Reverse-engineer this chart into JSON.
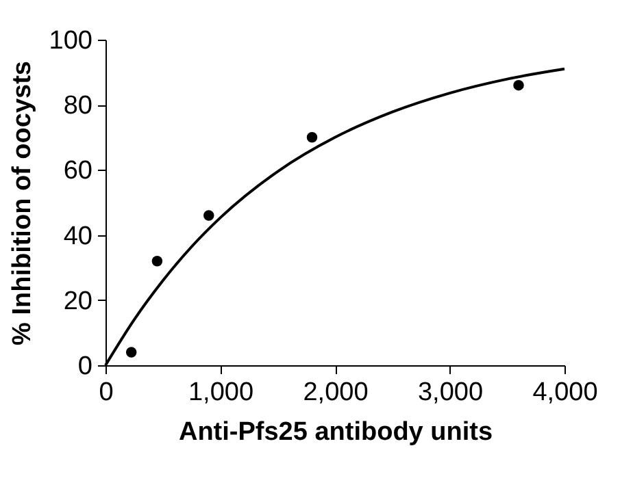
{
  "chart_data": {
    "type": "scatter",
    "xlabel": "Anti-Pfs25 antibody units",
    "ylabel": "% Inhibition of oocysts",
    "xlim": [
      0,
      4000
    ],
    "xticks": [
      0,
      {
        "value": 1000,
        "label": "1,000"
      },
      {
        "value": 2000,
        "label": "2,000"
      },
      {
        "value": 3000,
        "label": "3,000"
      },
      {
        "value": 4000,
        "label": "4,000"
      }
    ],
    "ylim": [
      0,
      100
    ],
    "yticks": [
      0,
      20,
      40,
      60,
      80,
      100
    ],
    "grid": false,
    "series": [
      {
        "marker": "circle",
        "color": "#000000",
        "x": [
          225,
          450,
          900,
          1800,
          3600
        ],
        "values": [
          4,
          32,
          46,
          70,
          86
        ]
      },
      {
        "type": "line",
        "color": "#000000",
        "line_style": "solid",
        "x": [
          0,
          250,
          500,
          750,
          1000,
          1500,
          2000,
          2500,
          3000,
          3500,
          4000
        ],
        "values": [
          0,
          14,
          26,
          36.4,
          45.3,
          59.5,
          70,
          77.8,
          83.6,
          87.9,
          91
        ]
      }
    ]
  }
}
